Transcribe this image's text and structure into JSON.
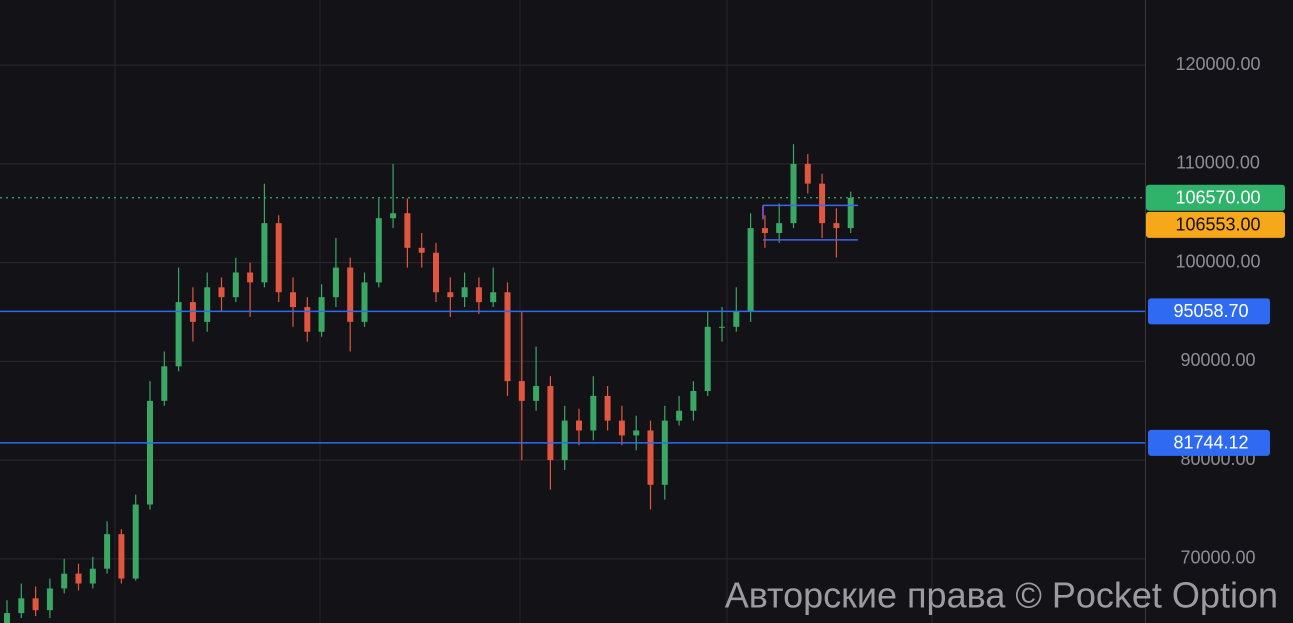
{
  "chart_data": {
    "type": "candlestick",
    "open": [
      63500,
      64500,
      66000,
      64800,
      67000,
      68500,
      67500,
      69000,
      72500,
      68000,
      75500,
      86000,
      89500,
      96000,
      94000,
      97500,
      96500,
      99000,
      98000,
      104000,
      97000,
      95500,
      93000,
      96500,
      99500,
      94000,
      98000,
      104500,
      105000,
      101500,
      101000,
      97000,
      96500,
      97500,
      96000,
      97000,
      88000,
      86000,
      87500,
      80000,
      84000,
      83000,
      86500,
      84000,
      82500,
      83000,
      77500,
      84000,
      85000,
      87000,
      93500,
      93500,
      95000,
      103500,
      103000,
      104000,
      110000,
      108000,
      104000,
      103500
    ],
    "high": [
      65800,
      67500,
      67200,
      68000,
      70000,
      69500,
      70200,
      73800,
      73000,
      76500,
      88000,
      91000,
      99500,
      97500,
      99000,
      98500,
      100500,
      100000,
      108000,
      104800,
      98500,
      96500,
      97800,
      102500,
      100500,
      99000,
      106500,
      110000,
      106500,
      103000,
      102000,
      98500,
      99000,
      98500,
      99500,
      98000,
      95000,
      91500,
      88500,
      85500,
      85200,
      88500,
      87500,
      85500,
      84500,
      84000,
      85500,
      86500,
      88000,
      95000,
      95500,
      97500,
      105000,
      104800,
      106000,
      112000,
      111000,
      109000,
      105500,
      107200
    ],
    "low": [
      63000,
      64000,
      64200,
      64000,
      66500,
      66800,
      67000,
      68500,
      67500,
      67800,
      75000,
      85500,
      89000,
      92000,
      93000,
      95000,
      96000,
      94500,
      97500,
      96000,
      93500,
      92000,
      92500,
      95500,
      91000,
      93500,
      97500,
      103500,
      99500,
      99500,
      96000,
      94500,
      95500,
      94800,
      95500,
      86500,
      80000,
      85000,
      77000,
      79000,
      81500,
      82000,
      83000,
      81500,
      81000,
      75000,
      76000,
      83500,
      84000,
      86500,
      92000,
      93000,
      94000,
      101500,
      102000,
      103500,
      107000,
      102500,
      100500,
      103000
    ],
    "close": [
      64500,
      66000,
      64800,
      67000,
      68500,
      67500,
      69000,
      72500,
      68000,
      75500,
      86000,
      89500,
      96000,
      94000,
      97500,
      96500,
      99000,
      98000,
      104000,
      97000,
      95500,
      93000,
      96500,
      99500,
      94000,
      98000,
      104500,
      105000,
      101500,
      101000,
      97000,
      96500,
      97500,
      96000,
      97000,
      88000,
      86000,
      87500,
      80000,
      84000,
      83000,
      86500,
      84000,
      82500,
      83000,
      77500,
      84000,
      85000,
      87000,
      93500,
      93500,
      95000,
      103500,
      103000,
      104000,
      110000,
      108000,
      104000,
      103500,
      106570
    ],
    "up_color": "#3aa864",
    "down_color": "#e0563f",
    "ylim": [
      63500,
      126600
    ],
    "yticks": [
      {
        "value": 70000,
        "label": "70000.00"
      },
      {
        "value": 80000,
        "label": "80000.00"
      },
      {
        "value": 90000,
        "label": "90000.00"
      },
      {
        "value": 100000,
        "label": "100000.00"
      },
      {
        "value": 110000,
        "label": "110000.00"
      },
      {
        "value": 120000,
        "label": "120000.00"
      }
    ],
    "grid": true,
    "levels": [
      {
        "value": 95058.7,
        "label": "95058.70",
        "color": "#2f6bf2"
      },
      {
        "value": 81744.12,
        "label": "81744.12",
        "color": "#2f6bf2"
      }
    ],
    "price_tags": [
      {
        "value": 106570,
        "label": "106570.00",
        "color": "#2fb36a"
      },
      {
        "value": 106553,
        "label": "106553.00",
        "color": "#f6a81a"
      }
    ],
    "zone": [
      102300,
      105800
    ]
  },
  "watermark": "Авторские права © Pocket Option"
}
